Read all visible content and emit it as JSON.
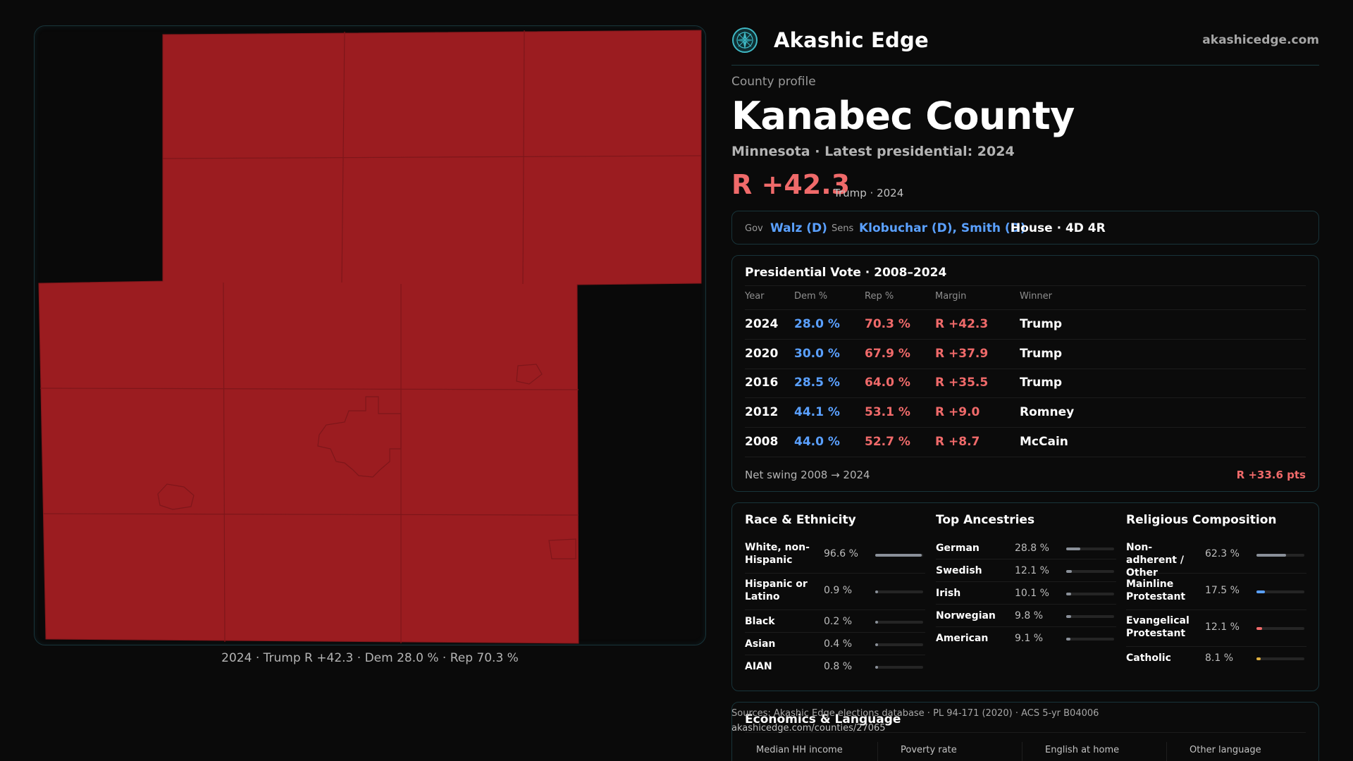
{
  "map": {
    "caption": "2024 · Trump R +42.3 · Dem 28.0 % · Rep 70.3 %",
    "fill_color": "#9b1c20",
    "line_color": "#7e161a"
  },
  "brand": {
    "name": "Akashic Edge",
    "url": "akashicedge.com",
    "logo_icon": "compass-logo-icon"
  },
  "profile": {
    "eyebrow": "County profile",
    "county_name": "Kanabec County",
    "subtitle": "Minnesota · Latest presidential: 2024",
    "margin": "R +42.3",
    "margin_note": "Trump · 2024"
  },
  "officials": {
    "gov_label": "Gov",
    "gov_value": "Walz (D)",
    "sens_label": "Sens",
    "sens_value": "Klobuchar (D), Smith (D)",
    "house": "House · 4D 4R"
  },
  "presidential": {
    "title": "Presidential Vote · 2008–2024",
    "headers": [
      "Year",
      "Dem %",
      "Rep %",
      "Margin",
      "Winner"
    ],
    "rows": [
      {
        "year": "2024",
        "dem": "28.0 %",
        "rep": "70.3 %",
        "margin": "R +42.3",
        "winner": "Trump"
      },
      {
        "year": "2020",
        "dem": "30.0 %",
        "rep": "67.9 %",
        "margin": "R +37.9",
        "winner": "Trump"
      },
      {
        "year": "2016",
        "dem": "28.5 %",
        "rep": "64.0 %",
        "margin": "R +35.5",
        "winner": "Trump"
      },
      {
        "year": "2012",
        "dem": "44.1 %",
        "rep": "53.1 %",
        "margin": "R +9.0",
        "winner": "Romney"
      },
      {
        "year": "2008",
        "dem": "44.0 %",
        "rep": "52.7 %",
        "margin": "R +8.7",
        "winner": "McCain"
      }
    ],
    "swing_label": "Net swing 2008 → 2024",
    "swing_value": "R +33.6 pts"
  },
  "race": {
    "title": "Race & Ethnicity",
    "rows": [
      {
        "label": "White, non-Hispanic",
        "value": "96.6 %",
        "pct": 96.6,
        "color": "#8a9099"
      },
      {
        "label": "Hispanic or Latino",
        "value": "0.9 %",
        "pct": 0.9,
        "color": "#8a9099"
      },
      {
        "label": "Black",
        "value": "0.2 %",
        "pct": 0.2,
        "color": "#8a9099"
      },
      {
        "label": "Asian",
        "value": "0.4 %",
        "pct": 0.4,
        "color": "#8a9099"
      },
      {
        "label": "AIAN",
        "value": "0.8 %",
        "pct": 0.8,
        "color": "#8a9099"
      }
    ]
  },
  "ancestry": {
    "title": "Top Ancestries",
    "rows": [
      {
        "label": "German",
        "value": "28.8 %",
        "pct": 28.8,
        "color": "#8a9099"
      },
      {
        "label": "Swedish",
        "value": "12.1 %",
        "pct": 12.1,
        "color": "#8a9099"
      },
      {
        "label": "Irish",
        "value": "10.1 %",
        "pct": 10.1,
        "color": "#8a9099"
      },
      {
        "label": "Norwegian",
        "value": "9.8 %",
        "pct": 9.8,
        "color": "#8a9099"
      },
      {
        "label": "American",
        "value": "9.1 %",
        "pct": 9.1,
        "color": "#8a9099"
      }
    ]
  },
  "religion": {
    "title": "Religious Composition",
    "rows": [
      {
        "label": "Non-adherent / Other",
        "value": "62.3 %",
        "pct": 62.3,
        "color": "#8a9099"
      },
      {
        "label": "Mainline Protestant",
        "value": "17.5 %",
        "pct": 17.5,
        "color": "#5aa0ff"
      },
      {
        "label": "Evangelical Protestant",
        "value": "12.1 %",
        "pct": 12.1,
        "color": "#f06a6a"
      },
      {
        "label": "Catholic",
        "value": "8.1 %",
        "pct": 8.1,
        "color": "#e0b040"
      }
    ]
  },
  "economics": {
    "title": "Economics & Language",
    "headers": [
      "Median HH income",
      "Poverty rate",
      "English at home",
      "Other language"
    ]
  },
  "sources": {
    "text": "Sources: Akashic Edge elections database · PL 94-171 (2020) · ACS 5-yr B04006",
    "url": "akashicedge.com/counties/27065"
  }
}
